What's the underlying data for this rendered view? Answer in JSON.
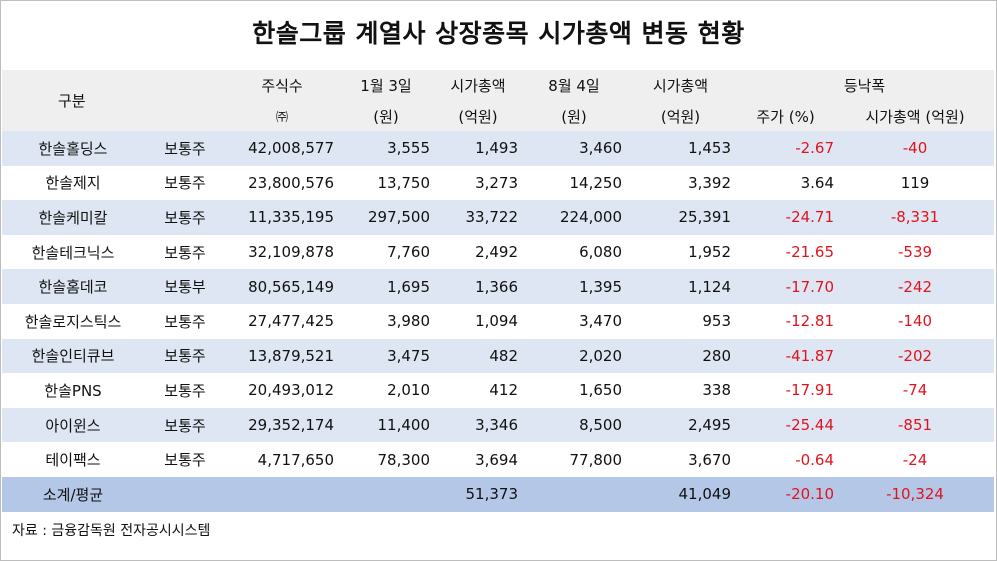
{
  "title": "한솔그룹 계열사 상장종목 시가총액 변동 현황",
  "header": {
    "category": "구분",
    "shares": "주식수",
    "shares_unit": "㈜",
    "jan3": "1월 3일",
    "jan3_unit": "(원)",
    "cap1": "시가총액",
    "cap1_unit": "(억원)",
    "aug4": "8월 4일",
    "aug4_unit": "(원)",
    "cap2": "시가총액",
    "cap2_unit": "(억원)",
    "change": "등낙폭",
    "change_price": "주가 (%)",
    "change_cap": "시가총액 (억원)"
  },
  "rows": [
    {
      "name": "한솔홀딩스",
      "type": "보통주",
      "shares": "42,008,577",
      "jan3": "3,555",
      "cap1": "1,493",
      "aug4": "3,460",
      "cap2": "1,453",
      "pct": "-2.67",
      "capchg": "-40"
    },
    {
      "name": "한솔제지",
      "type": "보통주",
      "shares": "23,800,576",
      "jan3": "13,750",
      "cap1": "3,273",
      "aug4": "14,250",
      "cap2": "3,392",
      "pct": "3.64",
      "capchg": "119"
    },
    {
      "name": "한솔케미칼",
      "type": "보통주",
      "shares": "11,335,195",
      "jan3": "297,500",
      "cap1": "33,722",
      "aug4": "224,000",
      "cap2": "25,391",
      "pct": "-24.71",
      "capchg": "-8,331"
    },
    {
      "name": "한솔테크닉스",
      "type": "보통주",
      "shares": "32,109,878",
      "jan3": "7,760",
      "cap1": "2,492",
      "aug4": "6,080",
      "cap2": "1,952",
      "pct": "-21.65",
      "capchg": "-539"
    },
    {
      "name": "한솔홈데코",
      "type": "보통부",
      "shares": "80,565,149",
      "jan3": "1,695",
      "cap1": "1,366",
      "aug4": "1,395",
      "cap2": "1,124",
      "pct": "-17.70",
      "capchg": "-242"
    },
    {
      "name": "한솔로지스틱스",
      "type": "보통주",
      "shares": "27,477,425",
      "jan3": "3,980",
      "cap1": "1,094",
      "aug4": "3,470",
      "cap2": "953",
      "pct": "-12.81",
      "capchg": "-140"
    },
    {
      "name": "한솔인티큐브",
      "type": "보통주",
      "shares": "13,879,521",
      "jan3": "3,475",
      "cap1": "482",
      "aug4": "2,020",
      "cap2": "280",
      "pct": "-41.87",
      "capchg": "-202"
    },
    {
      "name": "한솔PNS",
      "type": "보통주",
      "shares": "20,493,012",
      "jan3": "2,010",
      "cap1": "412",
      "aug4": "1,650",
      "cap2": "338",
      "pct": "-17.91",
      "capchg": "-74"
    },
    {
      "name": "아이윈스",
      "type": "보통주",
      "shares": "29,352,174",
      "jan3": "11,400",
      "cap1": "3,346",
      "aug4": "8,500",
      "cap2": "2,495",
      "pct": "-25.44",
      "capchg": "-851"
    },
    {
      "name": "테이팩스",
      "type": "보통주",
      "shares": "4,717,650",
      "jan3": "78,300",
      "cap1": "3,694",
      "aug4": "77,800",
      "cap2": "3,670",
      "pct": "-0.64",
      "capchg": "-24"
    }
  ],
  "total": {
    "label": "소계/평균",
    "cap1": "51,373",
    "cap2": "41,049",
    "pct": "-20.10",
    "capchg": "-10,324"
  },
  "source": "자료 : 금융감독원 전자공시시스템",
  "colors": {
    "header_bg": "#efefef",
    "row_blue": "#dde6f2",
    "total_bg": "#b4c7e7",
    "negative": "#e0141e"
  }
}
